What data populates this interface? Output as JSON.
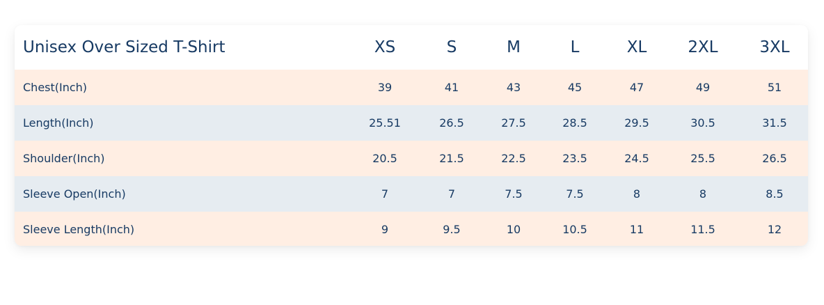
{
  "table": {
    "title": "Unisex Over Sized T-Shirt",
    "sizes": [
      "XS",
      "S",
      "M",
      "L",
      "XL",
      "2XL",
      "3XL"
    ],
    "rows": [
      {
        "label": "Chest(Inch)",
        "values": [
          "39",
          "41",
          "43",
          "45",
          "47",
          "49",
          "51"
        ]
      },
      {
        "label": "Length(Inch)",
        "values": [
          "25.51",
          "26.5",
          "27.5",
          "28.5",
          "29.5",
          "30.5",
          "31.5"
        ]
      },
      {
        "label": "Shoulder(Inch)",
        "values": [
          "20.5",
          "21.5",
          "22.5",
          "23.5",
          "24.5",
          "25.5",
          "26.5"
        ]
      },
      {
        "label": "Sleeve Open(Inch)",
        "values": [
          "7",
          "7",
          "7.5",
          "7.5",
          "8",
          "8",
          "8.5"
        ]
      },
      {
        "label": "Sleeve Length(Inch)",
        "values": [
          "9",
          "9.5",
          "10",
          "10.5",
          "11",
          "11.5",
          "12"
        ]
      }
    ]
  },
  "colors": {
    "text": "#173a63",
    "row_odd": "#ffeee3",
    "row_even": "#e6ecf1",
    "header_bg": "#ffffff"
  }
}
